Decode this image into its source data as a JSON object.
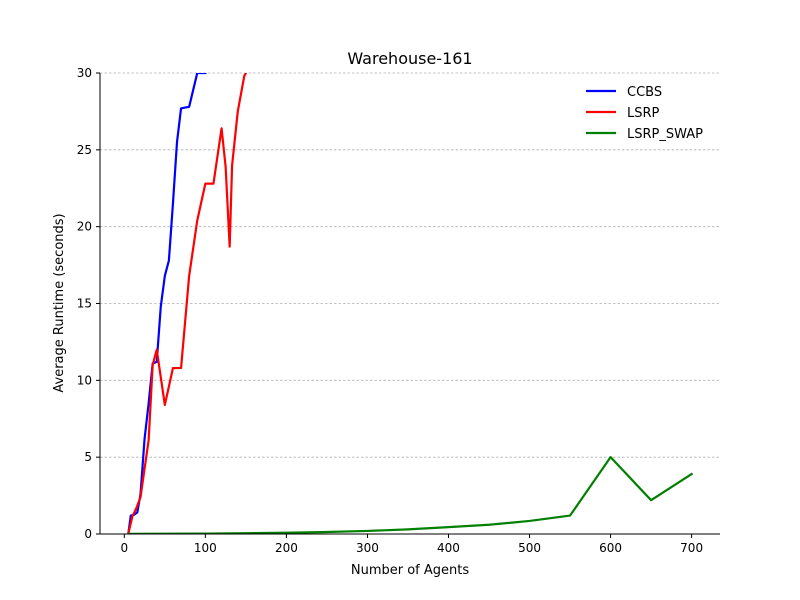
{
  "chart_data": {
    "type": "line",
    "title": "Warehouse-161",
    "xlabel": "Number of Agents",
    "ylabel": "Average Runtime (seconds)",
    "xlim": [
      -30,
      735
    ],
    "ylim": [
      0,
      30
    ],
    "x_ticks": [
      0,
      100,
      200,
      300,
      400,
      500,
      600,
      700
    ],
    "y_ticks": [
      0,
      5,
      10,
      15,
      20,
      25,
      30
    ],
    "grid": "horizontal dashed",
    "legend_position": "top-right",
    "series": [
      {
        "name": "CCBS",
        "color": "#0000ff",
        "points": [
          [
            5,
            0.05
          ],
          [
            8,
            1.2
          ],
          [
            12,
            1.25
          ],
          [
            16,
            1.4
          ],
          [
            20,
            2.6
          ],
          [
            25,
            6.2
          ],
          [
            30,
            8.5
          ],
          [
            35,
            11.1
          ],
          [
            40,
            11.2
          ],
          [
            45,
            14.8
          ],
          [
            50,
            16.8
          ],
          [
            55,
            17.8
          ],
          [
            60,
            21.5
          ],
          [
            65,
            25.5
          ],
          [
            70,
            27.7
          ],
          [
            80,
            27.8
          ],
          [
            90,
            30
          ],
          [
            100,
            30
          ]
        ]
      },
      {
        "name": "LSRP",
        "color": "#ff0000",
        "points": [
          [
            5,
            0.05
          ],
          [
            10,
            1.15
          ],
          [
            15,
            1.7
          ],
          [
            20,
            2.4
          ],
          [
            30,
            6.1
          ],
          [
            35,
            11.0
          ],
          [
            40,
            12.0
          ],
          [
            50,
            8.4
          ],
          [
            60,
            10.8
          ],
          [
            70,
            10.8
          ],
          [
            80,
            16.8
          ],
          [
            90,
            20.4
          ],
          [
            100,
            22.8
          ],
          [
            110,
            22.8
          ],
          [
            120,
            26.4
          ],
          [
            125,
            23.9
          ],
          [
            130,
            18.7
          ],
          [
            133,
            24.0
          ],
          [
            140,
            27.5
          ],
          [
            148,
            29.8
          ],
          [
            150,
            30
          ]
        ]
      },
      {
        "name": "LSRP_SWAP",
        "color": "#008000",
        "points": [
          [
            5,
            0.01
          ],
          [
            50,
            0.02
          ],
          [
            100,
            0.03
          ],
          [
            150,
            0.05
          ],
          [
            200,
            0.08
          ],
          [
            250,
            0.13
          ],
          [
            300,
            0.2
          ],
          [
            350,
            0.3
          ],
          [
            400,
            0.45
          ],
          [
            450,
            0.6
          ],
          [
            500,
            0.85
          ],
          [
            550,
            1.2
          ],
          [
            600,
            5.0
          ],
          [
            650,
            2.2
          ],
          [
            700,
            3.9
          ]
        ]
      }
    ]
  }
}
